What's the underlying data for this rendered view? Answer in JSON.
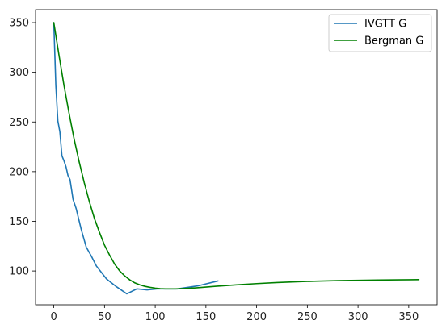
{
  "chart_data": {
    "type": "line",
    "title": "",
    "xlabel": "",
    "ylabel": "",
    "xlim": [
      -18,
      378
    ],
    "ylim": [
      66,
      363
    ],
    "xticks": [
      0,
      50,
      100,
      150,
      200,
      250,
      300,
      350
    ],
    "yticks": [
      100,
      150,
      200,
      250,
      300,
      350
    ],
    "grid": false,
    "legend_position": "top-right",
    "series": [
      {
        "name": "IVGTT G",
        "color": "#1f77b4",
        "x": [
          0,
          2,
          4,
          6,
          8,
          10,
          12,
          14,
          16,
          19,
          22,
          27,
          32,
          37,
          42,
          52,
          62,
          72,
          82,
          92,
          102,
          122,
          142,
          162
        ],
        "y": [
          350,
          287,
          251,
          240,
          216,
          211,
          205,
          196,
          192,
          172,
          163,
          142,
          124,
          115,
          105,
          92,
          84,
          77,
          82,
          81,
          82,
          82,
          85,
          90
        ]
      },
      {
        "name": "Bergman G",
        "color": "#008000",
        "x": [
          0,
          5,
          10,
          15,
          20,
          25,
          30,
          35,
          40,
          45,
          50,
          55,
          60,
          65,
          70,
          75,
          80,
          85,
          90,
          95,
          100,
          105,
          110,
          115,
          120,
          130,
          140,
          150,
          160,
          180,
          200,
          220,
          240,
          260,
          280,
          300,
          320,
          340,
          360
        ],
        "y": [
          350,
          318,
          287,
          259,
          233,
          210,
          189,
          170,
          153,
          139,
          126,
          116,
          107,
          100,
          95,
          91,
          88,
          86,
          84.5,
          83.5,
          82.7,
          82.2,
          82,
          82,
          82,
          82.4,
          83,
          83.8,
          84.6,
          86,
          87.3,
          88.4,
          89.2,
          89.8,
          90.3,
          90.6,
          90.9,
          91.1,
          91.3
        ]
      }
    ]
  }
}
